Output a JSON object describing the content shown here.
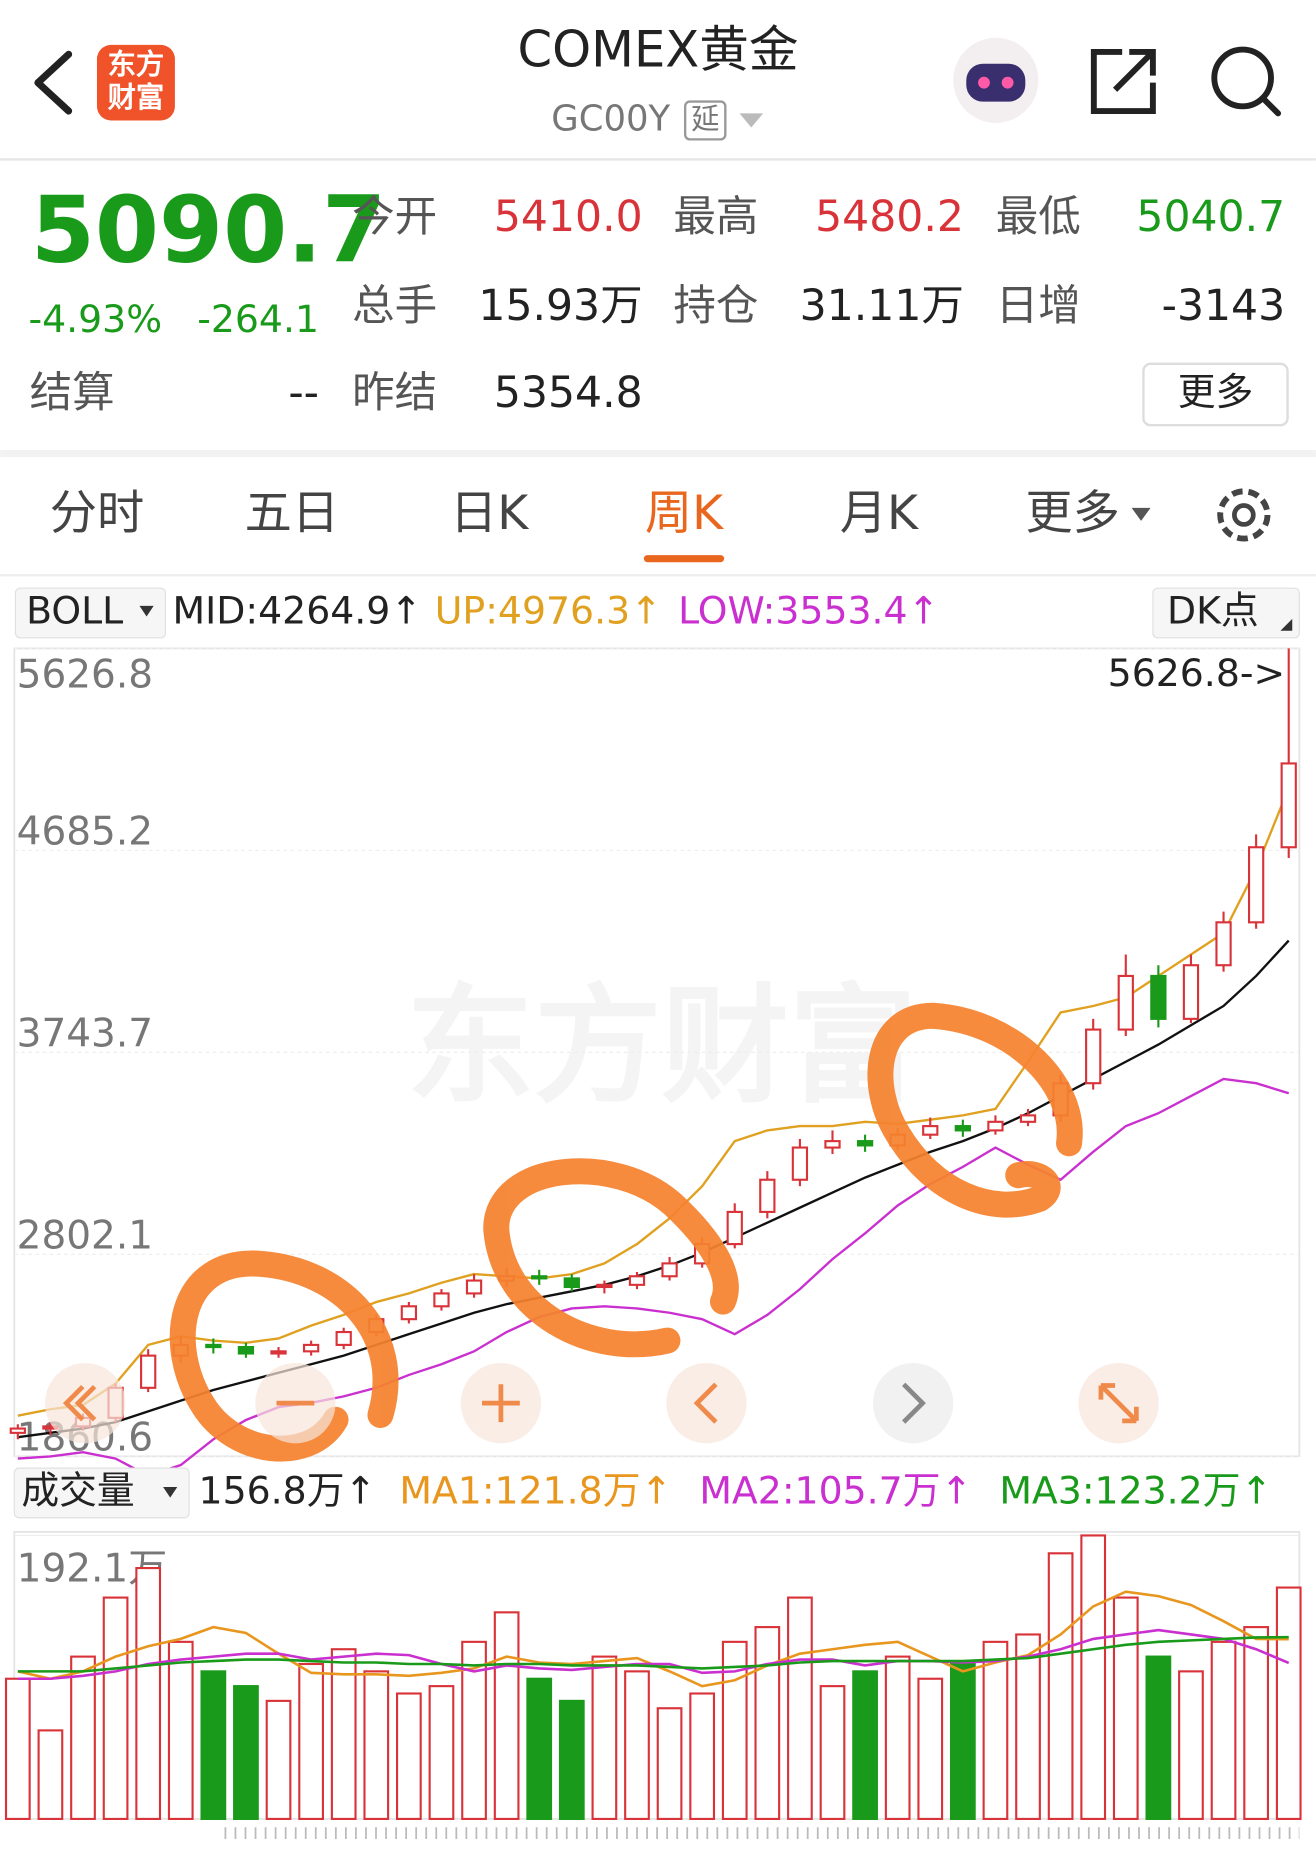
{
  "header": {
    "logo": [
      "东方",
      "财富"
    ],
    "title": "COMEX黄金",
    "code": "GC00Y",
    "delay": "延"
  },
  "quote": {
    "price": "5090.7",
    "change_pct": "-4.93%",
    "change": "-264.1",
    "stats": [
      {
        "label": "今开",
        "value": "5410.0"
      },
      {
        "label": "最高",
        "value": "5480.2"
      },
      {
        "label": "最低",
        "value": "5040.7"
      },
      {
        "label": "总手",
        "value": "15.93万"
      },
      {
        "label": "持仓",
        "value": "31.11万"
      },
      {
        "label": "日增",
        "value": "-3143"
      },
      {
        "label": "结算",
        "value": "--"
      },
      {
        "label": "昨结",
        "value": "5354.8"
      }
    ],
    "more": "更多"
  },
  "tabs": [
    "分时",
    "五日",
    "日K",
    "周K",
    "月K",
    "更多"
  ],
  "active_tab": 3,
  "chart_data": [
    {
      "type": "candlestick",
      "indicator": "BOLL",
      "button": "DK点",
      "watermark": "东方财富",
      "max_label": "5626.8->",
      "ylim": [
        1860.6,
        5626.8
      ],
      "yticks": [
        1860.6,
        2802.1,
        3743.7,
        4685.2,
        5626.8
      ],
      "grid": true,
      "up_color": "#d9333a",
      "down_color": "#1a9a1a",
      "open": [
        1970,
        1990,
        2000,
        2040,
        2180,
        2330,
        2380,
        2370,
        2340,
        2350,
        2380,
        2440,
        2500,
        2560,
        2620,
        2680,
        2700,
        2690,
        2650,
        2660,
        2700,
        2760,
        2850,
        3000,
        3150,
        3300,
        3330,
        3310,
        3360,
        3400,
        3380,
        3420,
        3450,
        3600,
        3850,
        4100,
        3900,
        4150,
        4350,
        4700
      ],
      "high": [
        2010,
        2020,
        2060,
        2200,
        2360,
        2420,
        2410,
        2390,
        2370,
        2400,
        2460,
        2520,
        2580,
        2640,
        2710,
        2740,
        2730,
        2710,
        2680,
        2720,
        2790,
        2880,
        3040,
        3190,
        3340,
        3380,
        3360,
        3390,
        3440,
        3430,
        3450,
        3480,
        3640,
        3900,
        4200,
        4150,
        4200,
        4400,
        4760,
        5626.8
      ],
      "low": [
        1940,
        1960,
        1980,
        2020,
        2160,
        2300,
        2340,
        2320,
        2320,
        2330,
        2360,
        2420,
        2480,
        2540,
        2600,
        2650,
        2660,
        2630,
        2620,
        2640,
        2680,
        2740,
        2830,
        2970,
        3120,
        3270,
        3280,
        3290,
        3340,
        3350,
        3360,
        3400,
        3420,
        3570,
        3820,
        3860,
        3880,
        4120,
        4320,
        4650
      ],
      "close": [
        1990,
        2000,
        2040,
        2180,
        2330,
        2380,
        2370,
        2340,
        2350,
        2380,
        2440,
        2500,
        2560,
        2620,
        2680,
        2700,
        2690,
        2650,
        2660,
        2700,
        2760,
        2850,
        3000,
        3150,
        3300,
        3330,
        3310,
        3360,
        3400,
        3380,
        3420,
        3450,
        3600,
        3850,
        4100,
        3900,
        4150,
        4350,
        4700,
        5090.7
      ],
      "series": [
        {
          "label": "MID:4264.9↑",
          "color": "#111111",
          "values": [
            1950,
            1970,
            1990,
            2020,
            2070,
            2120,
            2170,
            2210,
            2250,
            2290,
            2330,
            2380,
            2430,
            2480,
            2530,
            2570,
            2600,
            2630,
            2660,
            2700,
            2750,
            2810,
            2880,
            2950,
            3020,
            3090,
            3160,
            3220,
            3280,
            3330,
            3390,
            3460,
            3540,
            3620,
            3700,
            3780,
            3870,
            3960,
            4100,
            4264.9
          ]
        },
        {
          "label": "UP:4976.3↑",
          "color": "#e0a020",
          "values": [
            2050,
            2080,
            2100,
            2200,
            2380,
            2420,
            2400,
            2390,
            2410,
            2470,
            2520,
            2580,
            2620,
            2670,
            2710,
            2700,
            2690,
            2710,
            2760,
            2850,
            2970,
            3120,
            3330,
            3380,
            3400,
            3400,
            3420,
            3410,
            3430,
            3450,
            3480,
            3700,
            3930,
            3960,
            4000,
            4100,
            4200,
            4300,
            4600,
            4976.3
          ]
        },
        {
          "label": "LOW:3553.4↑",
          "color": "#c930cf",
          "values": [
            1850,
            1860,
            1880,
            1850,
            1770,
            1820,
            1940,
            2030,
            2090,
            2110,
            2140,
            2180,
            2240,
            2290,
            2350,
            2440,
            2510,
            2550,
            2560,
            2550,
            2530,
            2500,
            2430,
            2520,
            2640,
            2780,
            2900,
            3030,
            3130,
            3210,
            3300,
            3220,
            3150,
            3280,
            3400,
            3460,
            3540,
            3620,
            3600,
            3553.4
          ]
        }
      ]
    },
    {
      "type": "bar",
      "selector": "成交量",
      "current": "156.8万↑",
      "ylim": [
        0,
        192.1
      ],
      "yticks": [
        {
          "value": 192.1,
          "label": "192.1万"
        }
      ],
      "values": [
        95,
        60,
        110,
        150,
        170,
        120,
        100,
        90,
        80,
        105,
        115,
        100,
        85,
        90,
        120,
        140,
        95,
        80,
        110,
        100,
        75,
        85,
        120,
        130,
        150,
        90,
        100,
        110,
        95,
        105,
        120,
        125,
        180,
        192.1,
        150,
        110,
        100,
        120,
        130,
        156.8
      ],
      "series": [
        {
          "label": "MA1:121.8万↑",
          "color": "#e8961e",
          "values": [
            100,
            95,
            100,
            110,
            117,
            122,
            130,
            126,
            112,
            99,
            98,
            98,
            97,
            99,
            102,
            110,
            106,
            105,
            107,
            109,
            100,
            90,
            94,
            104,
            112,
            115,
            118,
            120,
            110,
            100,
            106,
            111,
            125,
            144,
            154,
            151,
            145,
            134,
            122,
            121.8
          ]
        },
        {
          "label": "MA2:105.7万↑",
          "color": "#c930cf",
          "values": [
            95,
            95,
            97,
            100,
            105,
            108,
            110,
            112,
            112,
            108,
            110,
            112,
            111,
            105,
            100,
            104,
            102,
            101,
            103,
            105,
            105,
            99,
            100,
            105,
            108,
            108,
            104,
            107,
            107,
            106,
            107,
            110,
            115,
            122,
            125,
            128,
            125,
            122,
            115,
            105.7
          ]
        },
        {
          "label": "MA3:123.2万↑",
          "color": "#1a9a1a",
          "values": [
            100,
            100,
            100,
            102,
            104,
            106,
            107,
            108,
            108,
            107,
            106,
            106,
            105,
            105,
            104,
            105,
            105,
            104,
            104,
            104,
            103,
            102,
            103,
            104,
            106,
            107,
            107,
            107,
            107,
            107,
            108,
            109,
            112,
            115,
            118,
            120,
            121,
            122,
            123,
            123.2
          ]
        }
      ]
    }
  ]
}
